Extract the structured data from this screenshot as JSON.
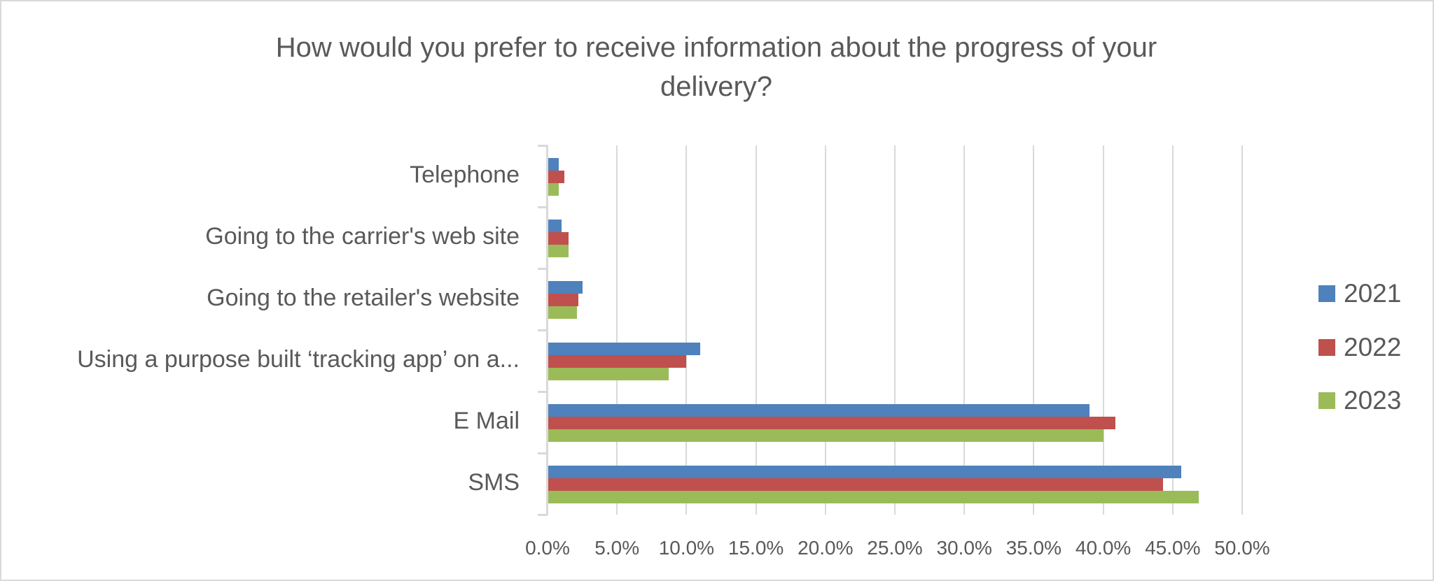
{
  "chart_data": {
    "type": "bar",
    "orientation": "horizontal",
    "title": "How would you prefer to receive information about the progress of your delivery?",
    "title_lines": [
      "How would you prefer to receive information about the progress of your",
      "delivery?"
    ],
    "xlabel": "",
    "ylabel": "",
    "categories": [
      "Telephone",
      "Going to the carrier's web site",
      "Going to the retailer's website",
      "Using a purpose built ‘tracking app’ on a...",
      "E Mail",
      "SMS"
    ],
    "series": [
      {
        "name": "2021",
        "color": "#4f81bd",
        "values": [
          0.8,
          1.0,
          2.5,
          11.0,
          39.0,
          45.6
        ]
      },
      {
        "name": "2022",
        "color": "#c0504d",
        "values": [
          1.2,
          1.5,
          2.2,
          10.0,
          40.9,
          44.3
        ]
      },
      {
        "name": "2023",
        "color": "#9bbb59",
        "values": [
          0.8,
          1.5,
          2.1,
          8.7,
          40.0,
          46.9
        ]
      }
    ],
    "value_unit": "%",
    "xlim": [
      0,
      50
    ],
    "x_ticks": [
      "0.0%",
      "5.0%",
      "10.0%",
      "15.0%",
      "20.0%",
      "25.0%",
      "30.0%",
      "35.0%",
      "40.0%",
      "45.0%",
      "50.0%"
    ],
    "grid": {
      "vertical": true,
      "horizontal": false
    },
    "legend": {
      "position": "right",
      "entries": [
        "2021",
        "2022",
        "2023"
      ]
    }
  },
  "colors": {
    "text": "#595959",
    "grid": "#d9d9d9",
    "border": "#d9d9d9",
    "background": "#ffffff"
  }
}
